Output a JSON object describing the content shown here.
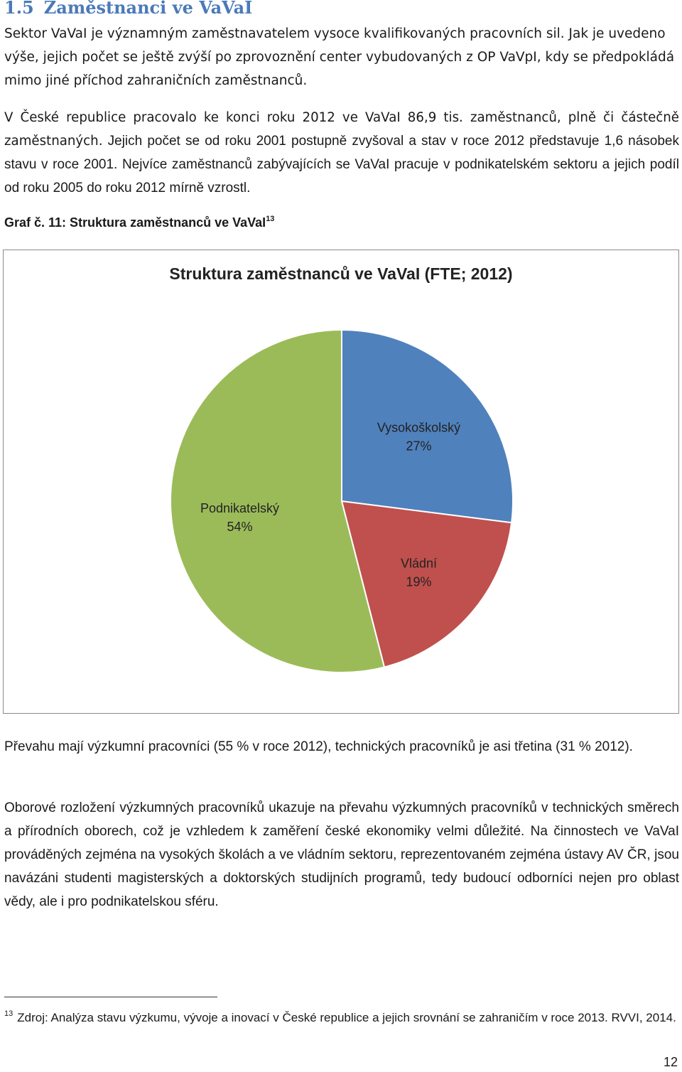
{
  "section": {
    "number": "1.5",
    "title": "Zaměstnanci ve VaVaI"
  },
  "paragraphs": {
    "p1": "Sektor VaVaI je významným zaměstnavatelem vysoce kvalifikovaných pracovních sil. Jak je uvedeno výše, jejich počet se ještě zvýší po zprovoznění center vybudovaných z OP VaVpI, kdy se předpokládá mimo jiné příchod zahraničních zaměstnanců.",
    "p2_lead": "V České republice pracovalo ke konci roku 2012 ve VaVaI 86,9 tis. zaměstnanců, plně či částečně zaměstnaných.",
    "p2_rest": " Jejich počet se od roku 2001 postupně zvyšoval a stav v roce 2012 představuje 1,6 násobek stavu v roce 2001. Nejvíce zaměstnanců zabývajících se VaVaI pracuje v podnikatelském sektoru a jejich podíl od roku 2005 do roku 2012 mírně vzrostl.",
    "p3": "Převahu mají výzkumní pracovníci (55 % v roce 2012), technických pracovníků je asi třetina (31 % 2012).",
    "p4": "Oborové rozložení výzkumných pracovníků ukazuje na převahu výzkumných pracovníků v technických směrech a přírodních oborech, což je vzhledem k zaměření české ekonomiky velmi důležité. Na činnostech ve VaVaI prováděných zejména na vysokých školách a ve vládním sektoru, reprezentovaném zejména ústavy AV ČR, jsou navázáni studenti magisterských a doktorských studijních programů, tedy budoucí odborníci nejen pro oblast vědy, ale i pro podnikatelskou sféru."
  },
  "caption": {
    "text": "Graf č. 11: Struktura zaměstnanců ve VaVaI",
    "footnote_ref": "13"
  },
  "chart_data": {
    "type": "pie",
    "title": "Struktura zaměstnanců ve VaVaI (FTE; 2012)",
    "slices": [
      {
        "label": "Vysokoškolský",
        "percent_label": "27%",
        "value": 27,
        "color": "#4f81bd"
      },
      {
        "label": "Vládní",
        "percent_label": "19%",
        "value": 19,
        "color": "#c0504d"
      },
      {
        "label": "Podnikatelský",
        "percent_label": "54%",
        "value": 54,
        "color": "#9bbb59"
      }
    ]
  },
  "footnote": {
    "marker": "13",
    "text": "Zdroj: Analýza stavu výzkumu, vývoje a inovací v České republice a jejich srovnání se zahraničím v roce 2013. RVVI, 2014."
  },
  "page_number": "12"
}
